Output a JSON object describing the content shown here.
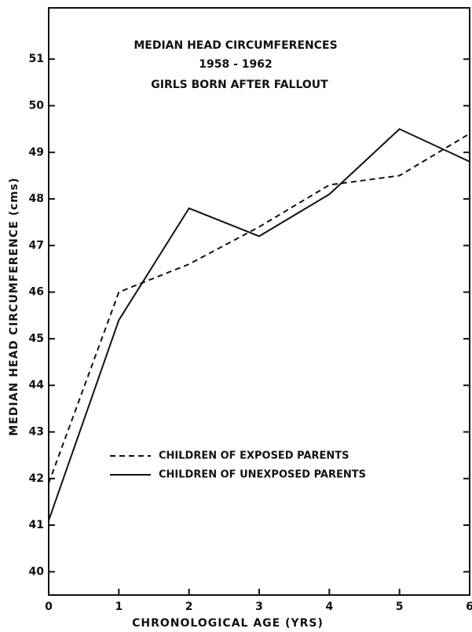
{
  "chart_data": {
    "type": "line",
    "title": [
      "MEDIAN HEAD CIRCUMFERENCES",
      "1958 - 1962",
      "GIRLS BORN AFTER FALLOUT"
    ],
    "x_label": "CHRONOLOGICAL AGE (YRS)",
    "y_label": "MEDIAN HEAD CIRCUMFERENCE (cms)",
    "x": [
      0,
      1,
      2,
      3,
      4,
      5,
      6
    ],
    "xlim": [
      0,
      6
    ],
    "xticks": [
      0,
      1,
      2,
      3,
      4,
      5,
      6
    ],
    "ylim": [
      39.5,
      52.1
    ],
    "yticks": [
      40,
      41,
      42,
      43,
      44,
      45,
      46,
      47,
      48,
      49,
      50,
      51
    ],
    "grid": false,
    "series": [
      {
        "name": "CHILDREN OF EXPOSED PARENTS",
        "color": "#111111",
        "dash": "dashed",
        "values": [
          41.9,
          46.0,
          46.6,
          47.4,
          48.3,
          48.5,
          49.4
        ]
      },
      {
        "name": "CHILDREN OF UNEXPOSED PARENTS",
        "color": "#111111",
        "dash": "solid",
        "values": [
          41.1,
          45.4,
          47.8,
          47.2,
          48.1,
          49.5,
          48.8
        ]
      }
    ]
  }
}
